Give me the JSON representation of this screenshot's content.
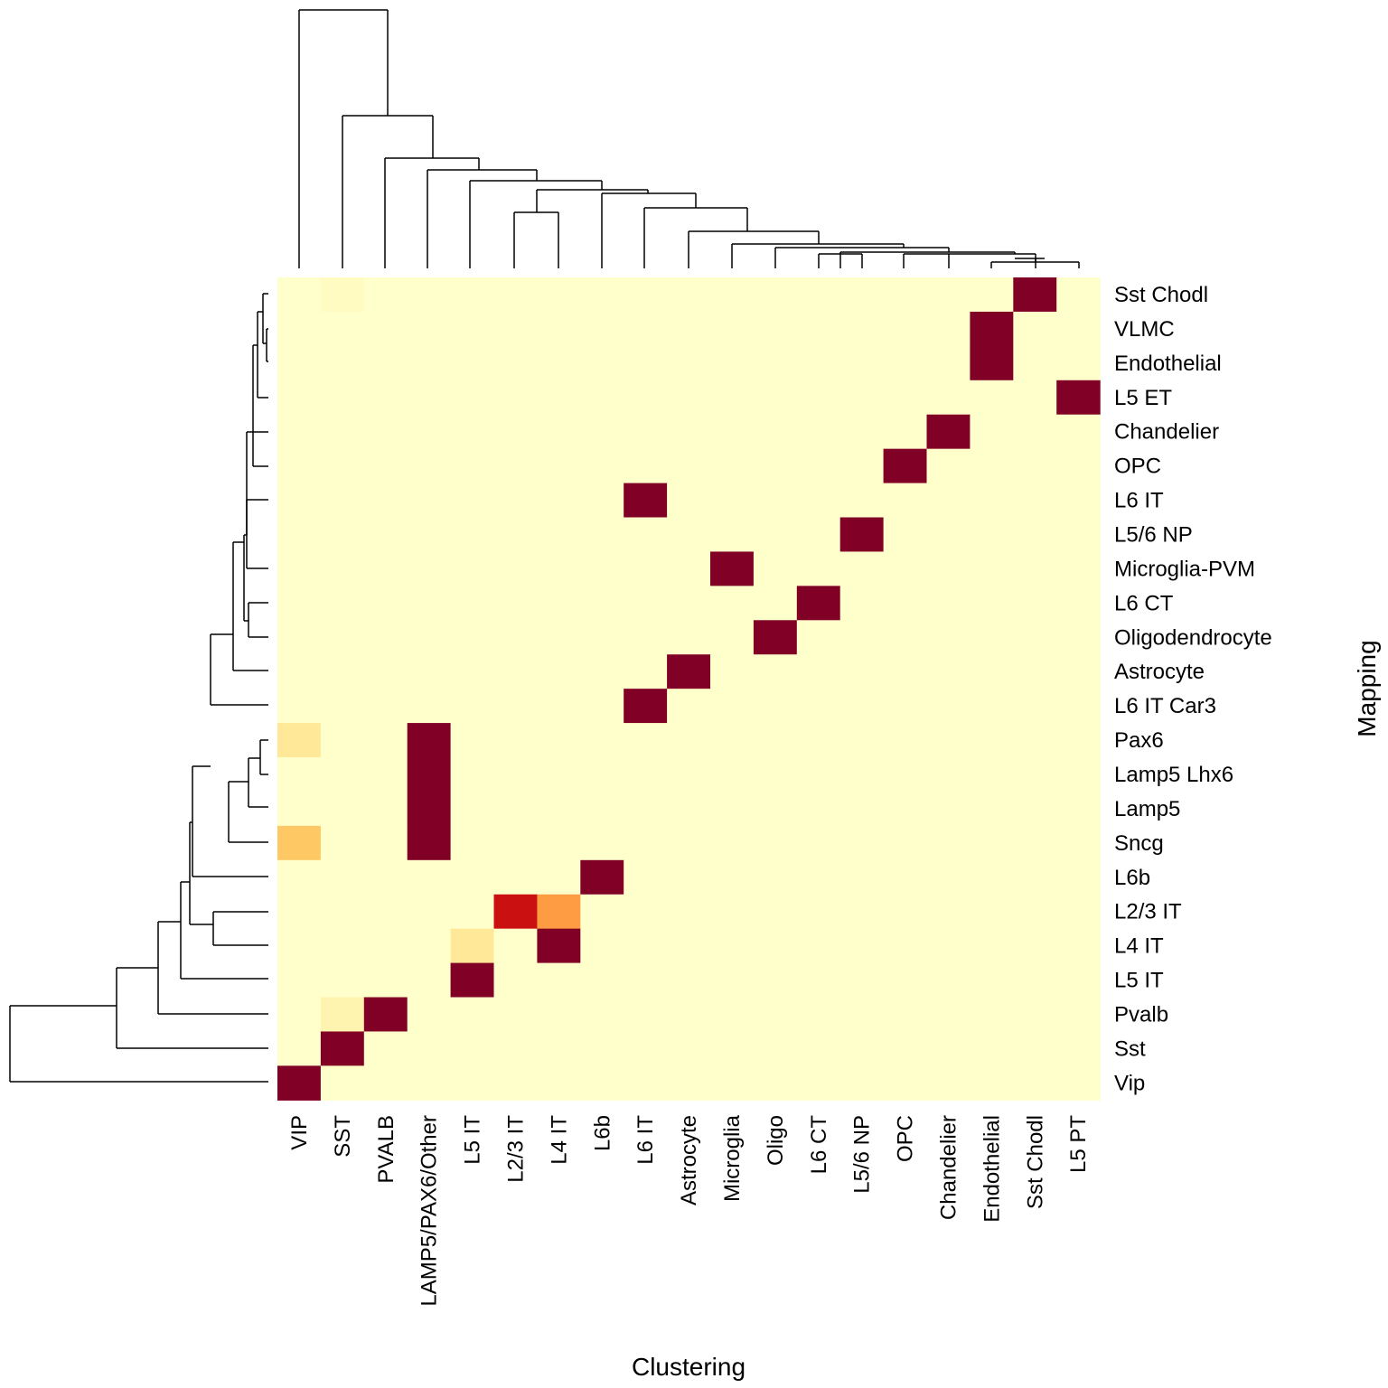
{
  "chart_data": {
    "type": "heatmap",
    "xlabel": "Clustering",
    "ylabel": "Mapping",
    "columns": [
      "VIP",
      "SST",
      "PVALB",
      "LAMP5/PAX6/Other",
      "L5 IT",
      "L2/3 IT",
      "L4 IT",
      "L6b",
      "L6 IT",
      "Astrocyte",
      "Microglia",
      "Oligo",
      "L6 CT",
      "L5/6 NP",
      "OPC",
      "Chandelier",
      "Endothelial",
      "Sst Chodl",
      "L5 PT"
    ],
    "rows": [
      "Sst Chodl",
      "VLMC",
      "Endothelial",
      "L5 ET",
      "Chandelier",
      "OPC",
      "L6 IT",
      "L5/6 NP",
      "Microglia-PVM",
      "L6 CT",
      "Oligodendrocyte",
      "Astrocyte",
      "L6 IT Car3",
      "Pax6",
      "Lamp5 Lhx6",
      "Lamp5",
      "Sncg",
      "L6b",
      "L2/3 IT",
      "L4 IT",
      "L5 IT",
      "Pvalb",
      "Sst",
      "Vip"
    ],
    "values": [
      [
        0,
        0.03,
        0,
        0,
        0,
        0,
        0,
        0,
        0,
        0,
        0,
        0,
        0,
        0,
        0,
        0,
        0,
        1,
        0
      ],
      [
        0,
        0,
        0,
        0,
        0,
        0,
        0,
        0,
        0,
        0,
        0,
        0,
        0,
        0,
        0,
        0,
        1,
        0,
        0
      ],
      [
        0,
        0,
        0,
        0,
        0,
        0,
        0,
        0,
        0,
        0,
        0,
        0,
        0,
        0,
        0,
        0,
        1,
        0,
        0
      ],
      [
        0,
        0,
        0,
        0,
        0,
        0,
        0,
        0,
        0,
        0,
        0,
        0,
        0,
        0,
        0,
        0,
        0,
        0,
        1
      ],
      [
        0,
        0,
        0,
        0,
        0,
        0,
        0,
        0,
        0,
        0,
        0,
        0,
        0,
        0,
        0,
        1,
        0,
        0,
        0
      ],
      [
        0,
        0,
        0,
        0,
        0,
        0,
        0,
        0,
        0,
        0,
        0,
        0,
        0,
        0,
        1,
        0,
        0,
        0,
        0
      ],
      [
        0,
        0,
        0,
        0,
        0,
        0,
        0,
        0,
        1,
        0,
        0,
        0,
        0,
        0,
        0,
        0,
        0,
        0,
        0
      ],
      [
        0,
        0,
        0,
        0,
        0,
        0,
        0,
        0,
        0,
        0,
        0,
        0,
        0,
        1,
        0,
        0,
        0,
        0,
        0
      ],
      [
        0,
        0,
        0,
        0,
        0,
        0,
        0,
        0,
        0,
        0,
        1,
        0,
        0,
        0,
        0,
        0,
        0,
        0,
        0
      ],
      [
        0,
        0,
        0,
        0,
        0,
        0,
        0,
        0,
        0,
        0,
        0,
        0,
        1,
        0,
        0,
        0,
        0,
        0,
        0
      ],
      [
        0,
        0,
        0,
        0,
        0,
        0,
        0,
        0,
        0,
        0,
        0,
        1,
        0,
        0,
        0,
        0,
        0,
        0,
        0
      ],
      [
        0,
        0,
        0,
        0,
        0,
        0,
        0,
        0,
        0,
        1,
        0,
        0,
        0,
        0,
        0,
        0,
        0,
        0,
        0
      ],
      [
        0,
        0,
        0,
        0,
        0,
        0,
        0,
        0,
        1,
        0,
        0,
        0,
        0,
        0,
        0,
        0,
        0,
        0,
        0
      ],
      [
        0.15,
        0,
        0,
        1,
        0,
        0,
        0,
        0,
        0,
        0,
        0,
        0,
        0,
        0,
        0,
        0,
        0,
        0,
        0
      ],
      [
        0,
        0,
        0,
        1,
        0,
        0,
        0,
        0,
        0,
        0,
        0,
        0,
        0,
        0,
        0,
        0,
        0,
        0,
        0
      ],
      [
        0,
        0,
        0,
        1,
        0,
        0,
        0,
        0,
        0,
        0,
        0,
        0,
        0,
        0,
        0,
        0,
        0,
        0,
        0
      ],
      [
        0.3,
        0,
        0,
        1,
        0,
        0,
        0,
        0,
        0,
        0,
        0,
        0,
        0,
        0,
        0,
        0,
        0,
        0,
        0
      ],
      [
        0,
        0,
        0,
        0,
        0,
        0,
        0,
        1,
        0,
        0,
        0,
        0,
        0,
        0,
        0,
        0,
        0,
        0,
        0
      ],
      [
        0,
        0,
        0,
        0,
        0,
        0.8,
        0.45,
        0,
        0,
        0,
        0,
        0,
        0,
        0,
        0,
        0,
        0,
        0,
        0
      ],
      [
        0,
        0,
        0,
        0,
        0.15,
        0,
        1,
        0,
        0,
        0,
        0,
        0,
        0,
        0,
        0,
        0,
        0,
        0,
        0
      ],
      [
        0,
        0,
        0,
        0,
        1,
        0,
        0,
        0,
        0,
        0,
        0,
        0,
        0,
        0,
        0,
        0,
        0,
        0,
        0
      ],
      [
        0,
        0.08,
        1,
        0,
        0,
        0,
        0,
        0,
        0,
        0,
        0,
        0,
        0,
        0,
        0,
        0,
        0,
        0,
        0
      ],
      [
        0,
        1,
        0,
        0,
        0,
        0,
        0,
        0,
        0,
        0,
        0,
        0,
        0,
        0,
        0,
        0,
        0,
        0,
        0
      ],
      [
        1,
        0,
        0,
        0,
        0,
        0,
        0,
        0,
        0,
        0,
        0,
        0,
        0,
        0,
        0,
        0,
        0,
        0,
        0
      ]
    ],
    "value_range": [
      0,
      1
    ],
    "colormap": [
      "#FFFFCC",
      "#FFEDA0",
      "#FED976",
      "#FEB24C",
      "#FD8D3C",
      "#F28100",
      "#E31A1C",
      "#A50000",
      "#800026"
    ],
    "column_dendrogram": true,
    "row_dendrogram": true,
    "legend": "none"
  }
}
